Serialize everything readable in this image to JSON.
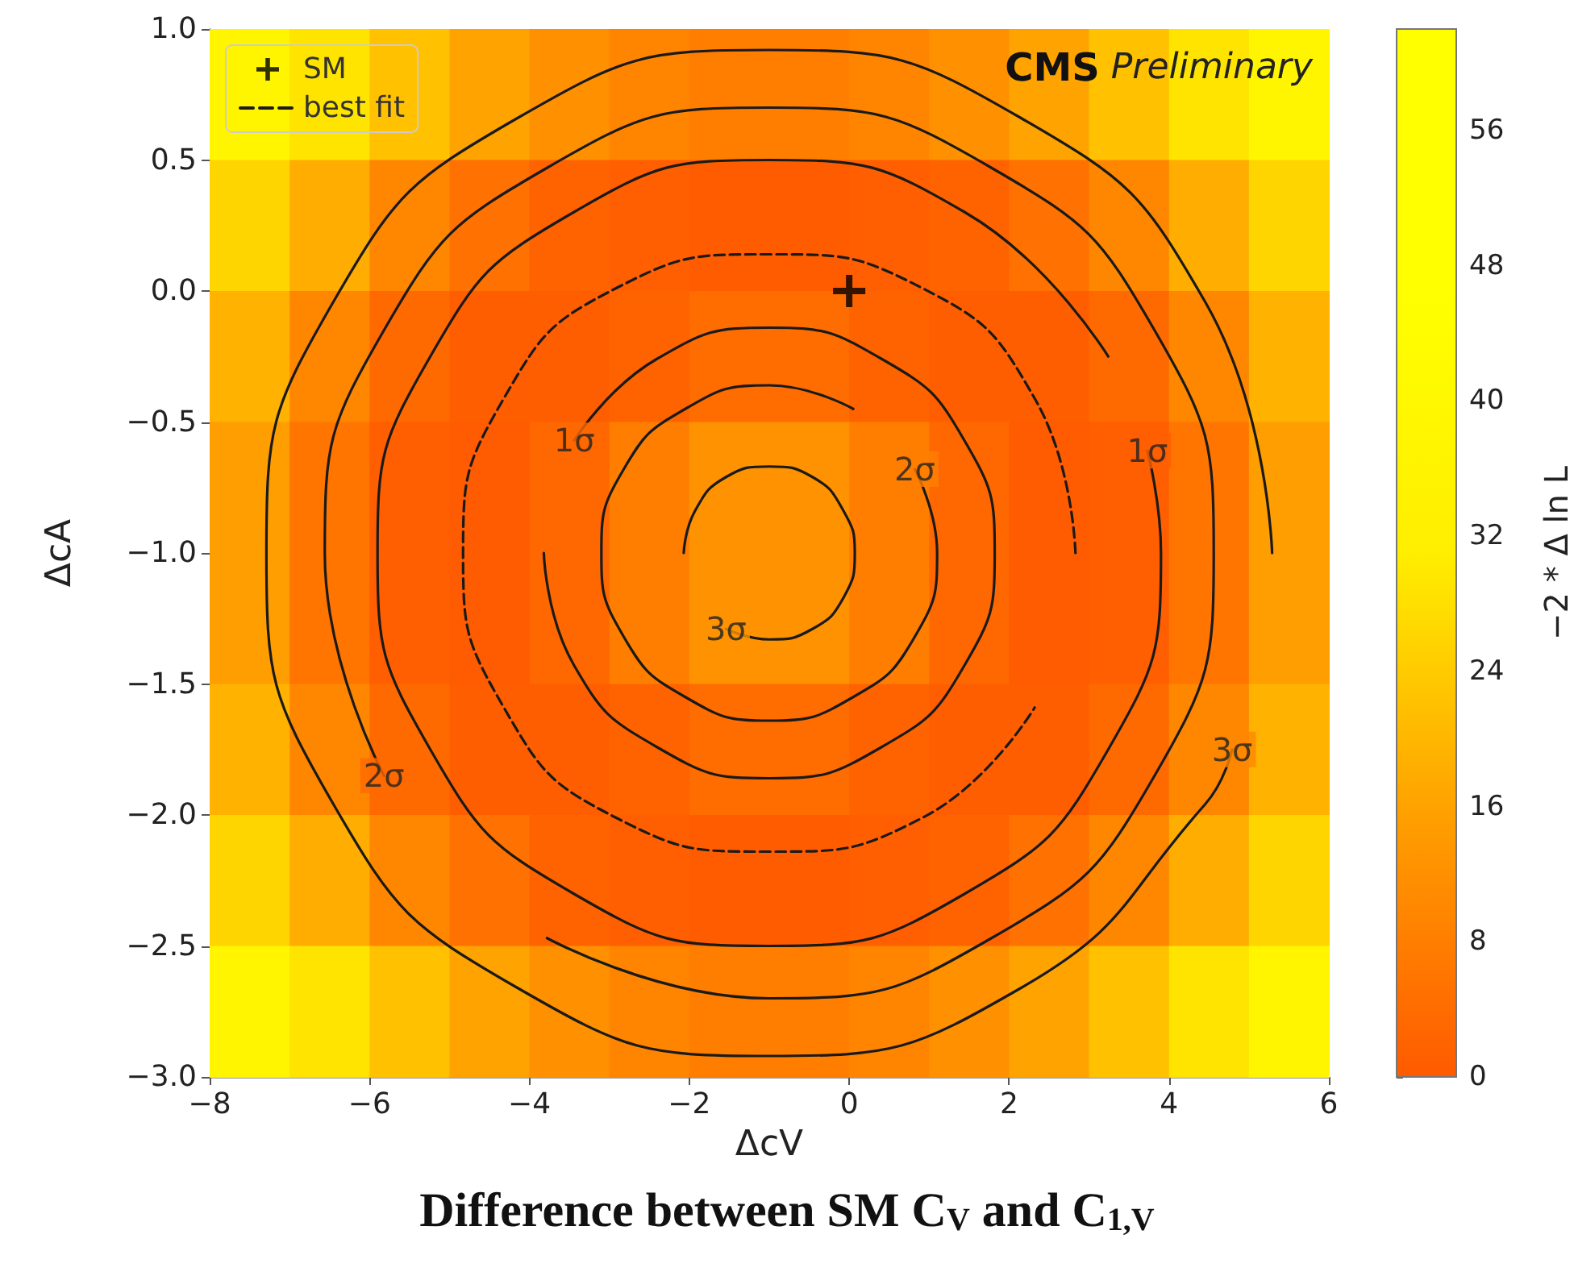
{
  "chart_data": {
    "type": "heatmap",
    "title": "Difference between SM C$_{V}$ and C$_{1,V}$",
    "xlabel": "ΔcV",
    "ylabel": "ΔcA",
    "clabel": "−2 * Δ ln L",
    "x": [
      -7.5,
      -6.5,
      -5.5,
      -4.5,
      -3.5,
      -2.5,
      -1.5,
      -0.5,
      0.5,
      1.5,
      2.5,
      3.5,
      4.5,
      5.5
    ],
    "y": [
      0.75,
      0.25,
      -0.25,
      -0.75,
      -1.25,
      -1.75,
      -2.25,
      -2.75
    ],
    "cells": [
      [
        37,
        29,
        22,
        16,
        12,
        9.5,
        8,
        8,
        9.5,
        12,
        16,
        22,
        29,
        37
      ],
      [
        26,
        18,
        10,
        5,
        2,
        1,
        0.5,
        0.5,
        1,
        2,
        5,
        10,
        18,
        26
      ],
      [
        19,
        10,
        3.5,
        0.8,
        0.8,
        2,
        4,
        4,
        2,
        0.8,
        0.8,
        3.5,
        10,
        19
      ],
      [
        15,
        6,
        1.2,
        0.3,
        3,
        8,
        12.5,
        12.5,
        8,
        3,
        0.3,
        1.2,
        6,
        15
      ],
      [
        15,
        6,
        1.2,
        0.3,
        3,
        8,
        12.5,
        12.5,
        8,
        3,
        0.3,
        1.2,
        6,
        15
      ],
      [
        19,
        10,
        3.5,
        0.8,
        0.8,
        2,
        4,
        4,
        2,
        0.8,
        0.8,
        3.5,
        10,
        19
      ],
      [
        26,
        18,
        10,
        5,
        2,
        1,
        0.5,
        0.5,
        1,
        2,
        5,
        10,
        18,
        26
      ],
      [
        37,
        29,
        22,
        16,
        12,
        9.5,
        8,
        8,
        9.5,
        12,
        16,
        22,
        29,
        37
      ]
    ],
    "clim": [
      0,
      62
    ],
    "cticks": [
      0,
      8,
      16,
      24,
      32,
      40,
      48,
      56
    ],
    "xlim": [
      -8,
      6
    ],
    "xticks": [
      -8,
      -6,
      -4,
      -2,
      0,
      2,
      4,
      6
    ],
    "ylim": [
      -3,
      1
    ],
    "yticks": [
      {
        "value": -3,
        "label": "−3.0"
      },
      {
        "value": -2.5,
        "label": "−2.5"
      },
      {
        "value": -2,
        "label": "−2.0"
      },
      {
        "value": -1.5,
        "label": "−1.5"
      },
      {
        "value": -1,
        "label": "−1.0"
      },
      {
        "value": -0.5,
        "label": "−0.5"
      },
      {
        "value": 0,
        "label": "0.0"
      },
      {
        "value": 0.5,
        "label": "0.5"
      },
      {
        "value": 1,
        "label": "1.0"
      }
    ],
    "grid": false,
    "legend": "top left",
    "series": [
      {
        "type": "scatter",
        "name": "SM",
        "marker": "cross",
        "color": "#000000",
        "x": [
          0
        ],
        "values": [
          0
        ]
      },
      {
        "type": "line",
        "name": "best fit",
        "line_style": "dashed",
        "color": "#1a1a1a",
        "x": [
          2.83,
          2.32,
          0.92,
          -1,
          -2.92,
          -4.32,
          -4.83,
          -4.32,
          -2.92,
          -1,
          0.92,
          2.32
        ],
        "values": [
          -1,
          -0.41,
          0.01,
          0.14,
          0.01,
          -0.41,
          -1,
          -1.59,
          -2.01,
          -2.14,
          -2.01,
          -1.59
        ]
      },
      {
        "type": "line",
        "color": "#1a1a1a",
        "x": [
          -2.07,
          -1.93,
          -1.54,
          -1,
          -0.46,
          -0.07,
          0.07,
          -0.07,
          -0.46,
          -1,
          -1.54
        ],
        "values": [
          -1,
          -0.84,
          -0.71,
          -0.67,
          -0.71,
          -0.84,
          -1,
          -1.17,
          -1.29,
          -1.33,
          -1.29
        ]
      },
      {
        "type": "line",
        "color": "#1a1a1a",
        "x": [
          0.05,
          -1,
          -2.05,
          -2.82,
          -3.1,
          -2.82,
          -2.05,
          -1,
          0.05,
          0.82,
          1.1,
          0.82
        ],
        "values": [
          -0.45,
          -0.36,
          -0.45,
          -0.68,
          -1,
          -1.32,
          -1.55,
          -1.64,
          -1.55,
          -1.32,
          -1,
          -0.68
        ]
      },
      {
        "type": "line",
        "color": "#1a1a1a",
        "x": [
          -3.82,
          -3.44,
          -2.41,
          -1,
          0.41,
          1.44,
          1.82,
          1.44,
          0.41,
          -1,
          -2.41,
          -3.44
        ],
        "values": [
          -1,
          -1.43,
          -1.74,
          -1.86,
          -1.74,
          -1.43,
          -1,
          -0.57,
          -0.26,
          -0.14,
          -0.26,
          -0.57
        ]
      },
      {
        "type": "line",
        "color": "#1a1a1a",
        "x": [
          3.24,
          1.45,
          -1,
          -3.45,
          -5.24,
          -5.9,
          -5.24,
          -3.45,
          -1,
          1.45,
          3.24,
          3.9,
          3.73
        ],
        "values": [
          -0.25,
          0.3,
          0.5,
          0.3,
          -0.25,
          -1,
          -1.75,
          -2.3,
          -2.5,
          -2.3,
          -1.75,
          -1,
          -0.61
        ]
      },
      {
        "type": "line",
        "color": "#1a1a1a",
        "x": [
          -3.78,
          -1,
          1.78,
          3.82,
          4.56,
          3.82,
          1.78,
          -1,
          -3.78,
          -5.82,
          -6.56,
          -5.82
        ],
        "values": [
          -2.47,
          -2.7,
          -2.47,
          -1.85,
          -1,
          -0.15,
          0.47,
          0.7,
          0.47,
          -0.15,
          -1,
          -1.85
        ]
      },
      {
        "type": "line",
        "color": "#1a1a1a",
        "x": [
          5.29,
          4.45,
          2.15,
          -1,
          -4.15,
          -6.45,
          -7.29,
          -6.45,
          -4.15,
          -1,
          2.15,
          4.45,
          4.79
        ],
        "values": [
          -1,
          -0.04,
          0.66,
          0.92,
          0.66,
          -0.04,
          -1,
          -1.96,
          -2.66,
          -2.92,
          -2.66,
          -1.96,
          -1.75
        ]
      }
    ],
    "annotations": [
      "CMS Preliminary",
      {
        "text": "1σ",
        "x": -3.44,
        "y": -0.57
      },
      {
        "text": "2σ",
        "x": 0.82,
        "y": -0.68
      },
      {
        "text": "1σ",
        "x": 3.73,
        "y": -0.61
      },
      {
        "text": "3σ",
        "x": -1.54,
        "y": -1.29
      },
      {
        "text": "2σ",
        "x": -5.82,
        "y": -1.85
      },
      {
        "text": "3σ",
        "x": 4.79,
        "y": -1.75
      }
    ]
  }
}
